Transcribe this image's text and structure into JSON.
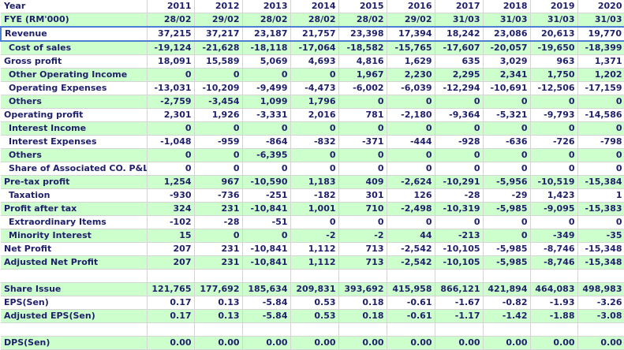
{
  "years_label": "Year",
  "years": [
    "2011",
    "2012",
    "2013",
    "2014",
    "2015",
    "2016",
    "2017",
    "2018",
    "2019",
    "2020"
  ],
  "rows": [
    {
      "label": "FYE (RM'000)",
      "values": [
        "28/02",
        "29/02",
        "28/02",
        "28/02",
        "28/02",
        "29/02",
        "31/03",
        "31/03",
        "31/03",
        "31/03"
      ],
      "bg": "g",
      "indent": false
    },
    {
      "label": "Revenue",
      "values": [
        "37,215",
        "37,217",
        "23,187",
        "21,757",
        "23,398",
        "17,394",
        "18,242",
        "23,086",
        "20,613",
        "19,770"
      ],
      "bg": "w",
      "indent": false,
      "selected": true
    },
    {
      "label": "Cost of sales",
      "values": [
        "-19,124",
        "-21,628",
        "-18,118",
        "-17,064",
        "-18,582",
        "-15,765",
        "-17,607",
        "-20,057",
        "-19,650",
        "-18,399"
      ],
      "bg": "g",
      "indent": true
    },
    {
      "label": "Gross profit",
      "values": [
        "18,091",
        "15,589",
        "5,069",
        "4,693",
        "4,816",
        "1,629",
        "635",
        "3,029",
        "963",
        "1,371"
      ],
      "bg": "w",
      "indent": false
    },
    {
      "label": "Other Operating Income",
      "values": [
        "0",
        "0",
        "0",
        "0",
        "1,967",
        "2,230",
        "2,295",
        "2,341",
        "1,750",
        "1,202"
      ],
      "bg": "g",
      "indent": true
    },
    {
      "label": "Operating Expenses",
      "values": [
        "-13,031",
        "-10,209",
        "-9,499",
        "-4,473",
        "-6,002",
        "-6,039",
        "-12,294",
        "-10,691",
        "-12,506",
        "-17,159"
      ],
      "bg": "w",
      "indent": true
    },
    {
      "label": "Others",
      "values": [
        "-2,759",
        "-3,454",
        "1,099",
        "1,796",
        "0",
        "0",
        "0",
        "0",
        "0",
        "0"
      ],
      "bg": "g",
      "indent": true
    },
    {
      "label": "Operating profit",
      "values": [
        "2,301",
        "1,926",
        "-3,331",
        "2,016",
        "781",
        "-2,180",
        "-9,364",
        "-5,321",
        "-9,793",
        "-14,586"
      ],
      "bg": "w",
      "indent": false
    },
    {
      "label": "Interest Income",
      "values": [
        "0",
        "0",
        "0",
        "0",
        "0",
        "0",
        "0",
        "0",
        "0",
        "0"
      ],
      "bg": "g",
      "indent": true
    },
    {
      "label": "Interest Expenses",
      "values": [
        "-1,048",
        "-959",
        "-864",
        "-832",
        "-371",
        "-444",
        "-928",
        "-636",
        "-726",
        "-798"
      ],
      "bg": "w",
      "indent": true
    },
    {
      "label": "Others",
      "values": [
        "0",
        "0",
        "-6,395",
        "0",
        "0",
        "0",
        "0",
        "0",
        "0",
        "0"
      ],
      "bg": "g",
      "indent": true
    },
    {
      "label": "Share of Associated CO. P&L",
      "values": [
        "0",
        "0",
        "0",
        "0",
        "0",
        "0",
        "0",
        "0",
        "0",
        "0"
      ],
      "bg": "w",
      "indent": true
    },
    {
      "label": "Pre-tax profit",
      "values": [
        "1,254",
        "967",
        "-10,590",
        "1,183",
        "409",
        "-2,624",
        "-10,291",
        "-5,956",
        "-10,519",
        "-15,384"
      ],
      "bg": "g",
      "indent": false
    },
    {
      "label": "Taxation",
      "values": [
        "-930",
        "-736",
        "-251",
        "-182",
        "301",
        "126",
        "-28",
        "-29",
        "1,423",
        "1"
      ],
      "bg": "w",
      "indent": true
    },
    {
      "label": "Profit after tax",
      "values": [
        "324",
        "231",
        "-10,841",
        "1,001",
        "710",
        "-2,498",
        "-10,319",
        "-5,985",
        "-9,095",
        "-15,383"
      ],
      "bg": "g",
      "indent": false
    },
    {
      "label": "Extraordinary Items",
      "values": [
        "-102",
        "-28",
        "-51",
        "0",
        "0",
        "0",
        "0",
        "0",
        "0",
        "0"
      ],
      "bg": "w",
      "indent": true
    },
    {
      "label": "Minority Interest",
      "values": [
        "15",
        "0",
        "0",
        "-2",
        "-2",
        "44",
        "-213",
        "0",
        "-349",
        "-35"
      ],
      "bg": "g",
      "indent": true
    },
    {
      "label": "Net Profit",
      "values": [
        "207",
        "231",
        "-10,841",
        "1,112",
        "713",
        "-2,542",
        "-10,105",
        "-5,985",
        "-8,746",
        "-15,348"
      ],
      "bg": "w",
      "indent": false
    },
    {
      "label": "Adjusted Net Profit",
      "values": [
        "207",
        "231",
        "-10,841",
        "1,112",
        "713",
        "-2,542",
        "-10,105",
        "-5,985",
        "-8,746",
        "-15,348"
      ],
      "bg": "g",
      "indent": false
    },
    {
      "label": "",
      "values": [
        "",
        "",
        "",
        "",
        "",
        "",
        "",
        "",
        "",
        ""
      ],
      "bg": "w",
      "indent": false
    },
    {
      "label": "Share Issue",
      "values": [
        "121,765",
        "177,692",
        "185,634",
        "209,831",
        "393,692",
        "415,958",
        "866,121",
        "421,894",
        "464,083",
        "498,983"
      ],
      "bg": "g",
      "indent": false
    },
    {
      "label": "EPS(Sen)",
      "values": [
        "0.17",
        "0.13",
        "-5.84",
        "0.53",
        "0.18",
        "-0.61",
        "-1.67",
        "-0.82",
        "-1.93",
        "-3.26"
      ],
      "bg": "w",
      "indent": false
    },
    {
      "label": "Adjusted EPS(Sen)",
      "values": [
        "0.17",
        "0.13",
        "-5.84",
        "0.53",
        "0.18",
        "-0.61",
        "-1.17",
        "-1.42",
        "-1.88",
        "-3.08"
      ],
      "bg": "g",
      "indent": false
    },
    {
      "label": "",
      "values": [
        "",
        "",
        "",
        "",
        "",
        "",
        "",
        "",
        "",
        ""
      ],
      "bg": "w",
      "indent": false
    },
    {
      "label": "DPS(Sen)",
      "values": [
        "0.00",
        "0.00",
        "0.00",
        "0.00",
        "0.00",
        "0.00",
        "0.00",
        "0.00",
        "0.00",
        "0.00"
      ],
      "bg": "g",
      "indent": false
    }
  ]
}
